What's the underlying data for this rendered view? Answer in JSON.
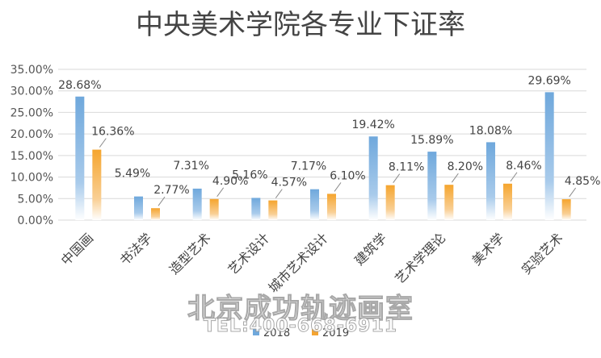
{
  "chart_data": {
    "type": "bar",
    "title": "中央美术学院各专业下证率",
    "categories": [
      "中国画",
      "书法学",
      "造型艺术",
      "艺术设计",
      "城市艺术设计",
      "建筑学",
      "艺术学理论",
      "美术学",
      "实验艺术"
    ],
    "series": [
      {
        "name": "2018",
        "values": [
          28.68,
          5.49,
          7.31,
          5.16,
          7.17,
          19.42,
          15.89,
          18.08,
          29.69
        ],
        "labels": [
          "28.68%",
          "5.49%",
          "7.31%",
          "5.16%",
          "7.17%",
          "19.42%",
          "15.89%",
          "18.08%",
          "29.69%"
        ],
        "color": "#6fa8dc"
      },
      {
        "name": "2019",
        "values": [
          16.36,
          2.77,
          4.9,
          4.57,
          6.1,
          8.11,
          8.2,
          8.46,
          4.85
        ],
        "labels": [
          "16.36%",
          "2.77%",
          "4.90%",
          "4.57%",
          "6.10%",
          "8.11%",
          "8.20%",
          "8.46%",
          "4.85%"
        ],
        "color": "#f4a431"
      }
    ],
    "yticks": [
      "0.00%",
      "5.00%",
      "10.00%",
      "15.00%",
      "20.00%",
      "25.00%",
      "30.00%",
      "35.00%"
    ],
    "ylim": [
      0,
      35
    ],
    "grid": true,
    "legend_position": "bottom"
  },
  "watermark": {
    "line1": "北京成功轨迹画室",
    "line2": "TEL:400-668-6911"
  }
}
